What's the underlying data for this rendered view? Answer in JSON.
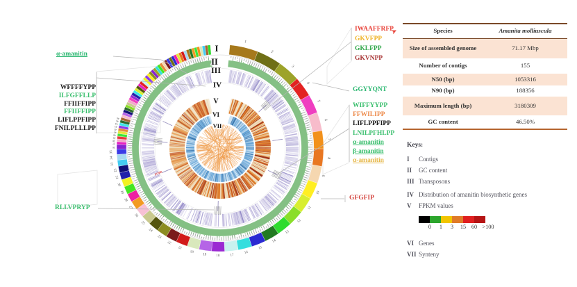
{
  "left_labels": {
    "amanitin_top": {
      "text": "α-amanitin",
      "color": "#2eb873"
    },
    "peptides": [
      {
        "text": "WFFFFYPP",
        "color": "#1c1c1c"
      },
      {
        "text": "ILFGFFLLP",
        "color": "#3bbf6e"
      },
      {
        "text": "FFIIFFIPP",
        "color": "#1c1c1c"
      },
      {
        "text": "FFIIFFIPP",
        "color": "#3bbf6e"
      },
      {
        "text": "LIFLPPFIPP",
        "color": "#1c1c1c"
      },
      {
        "text": "FNILPLLLPP",
        "color": "#1c1c1c"
      }
    ],
    "bottom_peptide": {
      "text": "RLLVPRYP",
      "color": "#3bbf6e"
    }
  },
  "right_labels": {
    "top_peptides": [
      {
        "text": "IWAAFFRFP",
        "color": "#e8453c"
      },
      {
        "text": "GKVFPP",
        "color": "#f0b429"
      },
      {
        "text": "GKLFPP",
        "color": "#33a84c"
      },
      {
        "text": "GKVNPP",
        "color": "#a83434"
      }
    ],
    "mid_peptide_top": {
      "text": "GGYYQNT",
      "color": "#2eb873"
    },
    "mid_peptides": [
      {
        "text": "WIFFYYPP",
        "color": "#3bbf6e"
      },
      {
        "text": "FFWILIPP",
        "color": "#ed8a4a"
      },
      {
        "text": "LIFLPPFIPP",
        "color": "#1c1c1c"
      },
      {
        "text": "LNILPFHLPP",
        "color": "#3bbf6e"
      },
      {
        "text": "α-amanitin",
        "color": "#3bbf6e"
      },
      {
        "text": "β-amanitin",
        "color": "#3bbf6e"
      },
      {
        "text": "α-amanitin",
        "color": "#e6b84a"
      }
    ],
    "bottom_peptide": {
      "text": "GFGFIP",
      "color": "#d4453f"
    }
  },
  "table": {
    "header": {
      "col1": "Species",
      "col2": "Amanita molliuscula"
    },
    "rows": [
      {
        "label": "Size of assembled genome",
        "value": "71.17 Mbp"
      },
      {
        "label": "Number of contigs",
        "value": "155"
      },
      {
        "label": "N50 (bp)",
        "value": "1053316"
      },
      {
        "label": "N90 (bp)",
        "value": "188356"
      },
      {
        "label": "Maximum length (bp)",
        "value": "3180309"
      },
      {
        "label": "GC content",
        "value": "46.50%"
      }
    ]
  },
  "keys": {
    "title": "Keys:",
    "items": [
      {
        "numeral": "I",
        "label": "Contigs"
      },
      {
        "numeral": "II",
        "label": "GC content"
      },
      {
        "numeral": "III",
        "label": "Transposons"
      },
      {
        "numeral": "IV",
        "label": "Distribution of amanitin biosynthetic genes"
      },
      {
        "numeral": "V",
        "label": "FPKM values"
      },
      {
        "numeral": "VI",
        "label": "Genes"
      },
      {
        "numeral": "VII",
        "label": "Synteny"
      }
    ],
    "fpkm_scale": {
      "colors": [
        "#000000",
        "#2ca52c",
        "#f2c500",
        "#e07b28",
        "#e01f1f",
        "#b51414"
      ],
      "labels": [
        "0",
        "1",
        "3",
        "15",
        "60",
        ">100"
      ]
    }
  },
  "circos": {
    "labeled_segments": 46,
    "red_gene_label": "POPB",
    "palette": [
      "#a6791c",
      "#6f6f16",
      "#9da32a",
      "#e32222",
      "#ef3fc0",
      "#f7bccb",
      "#f2911c",
      "#e87722",
      "#f5d7b0",
      "#ffee22",
      "#d8ee30",
      "#8ade2a",
      "#2edc2e",
      "#227a22",
      "#2a2ad2",
      "#35dede",
      "#c9f2ef",
      "#9a2ad2",
      "#b565e6",
      "#d9e8bc",
      "#d21a1a",
      "#7a1a1a",
      "#8c8c22",
      "#55560f",
      "#c9c98e",
      "#f7c0d4",
      "#f29a22",
      "#ee22a2",
      "#44e622",
      "#f2f222",
      "#2222aa",
      "#101078",
      "#44ccf2",
      "#a8d8f0",
      "#3a3ae6",
      "#8822d2",
      "#e622c0",
      "#f2a8c8",
      "#e63c3c",
      "#3ce63c",
      "#e6e63c",
      "#e68c3c",
      "#8c3ce6",
      "#3ce6e6",
      "#2f6b2f",
      "#a86432"
    ],
    "track_colors": {
      "gc_base": "#84c084",
      "gc_spike": "#9c9c9c",
      "gc_dark": "#6fae6f",
      "transposon": "#b3abd8",
      "transposon_dark": "#867cc0",
      "amanitin_tick": "#8e86b8",
      "fpkm": [
        "#eedcba",
        "#e8a35c",
        "#dd7a28",
        "#c2501e",
        "#9c2f16"
      ],
      "fpkm_base": "#f5ead6",
      "genes_base": "#cfe4f3",
      "genes_bar": "#5d9fd4",
      "genes_bar_dark": "#2e6da8",
      "synteny": "#f09a44",
      "synteny_dark": "#e87f28"
    }
  },
  "chart_data": {
    "type": "circos",
    "title": "",
    "tracks": [
      {
        "numeral": "I",
        "name": "Contigs",
        "description": "outer ring of multicolored contig segments numbered 1-46+"
      },
      {
        "numeral": "II",
        "name": "GC content",
        "description": "green band with gray histogram spikes"
      },
      {
        "numeral": "III",
        "name": "Transposons",
        "description": "lavender radial bars"
      },
      {
        "numeral": "IV",
        "name": "Distribution of amanitin biosynthetic genes",
        "description": "sparse ring with tiny gray gene annotations and one red gene label"
      },
      {
        "numeral": "V",
        "name": "FPKM values",
        "description": "tan/orange/red expression heat bars"
      },
      {
        "numeral": "VI",
        "name": "Genes",
        "description": "light-blue ring with blue radial bars"
      },
      {
        "numeral": "VII",
        "name": "Synteny",
        "description": "central disc of orange chords"
      }
    ],
    "fpkm_color_scale": {
      "labels": [
        "0",
        "1",
        "3",
        "15",
        "60",
        ">100"
      ],
      "colors": [
        "#000000",
        "#2ca52c",
        "#f2c500",
        "#e07b28",
        "#e01f1f",
        "#b51414"
      ]
    },
    "genome_statistics": {
      "species": "Amanita molliuscula",
      "assembled_genome_size": "71.17 Mbp",
      "number_of_contigs": "155",
      "n50_bp": "1053316",
      "n90_bp": "188356",
      "maximum_length_bp": "3180309",
      "gc_content": "46.50%"
    }
  }
}
